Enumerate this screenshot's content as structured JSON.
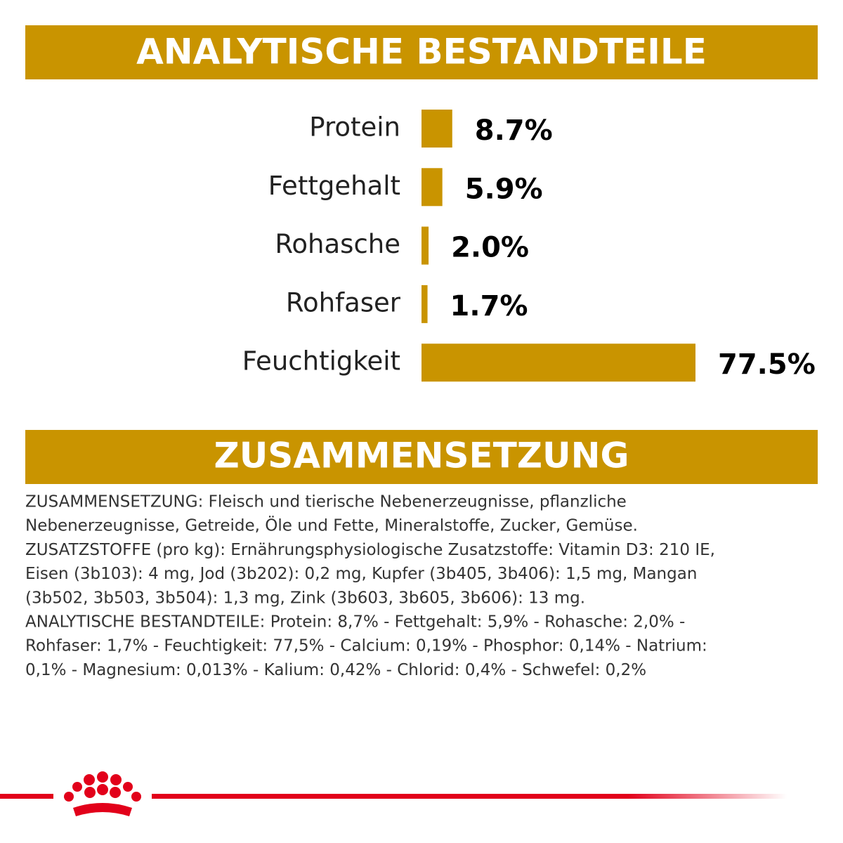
{
  "chart_data": {
    "type": "bar",
    "orientation": "horizontal",
    "title": "ANALYTISCHE BESTANDTEILE",
    "categories": [
      "Protein",
      "Fettgehalt",
      "Rohasche",
      "Rohfaser",
      "Feuchtigkeit"
    ],
    "values": [
      8.7,
      5.9,
      2.0,
      1.7,
      77.5
    ],
    "value_labels": [
      "8.7%",
      "5.9%",
      "2.0%",
      "1.7%",
      "77.5%"
    ],
    "color": "#c99400"
  },
  "composition": {
    "title": "ZUSAMMENSETZUNG",
    "lines": [
      "ZUSAMMENSETZUNG: Fleisch und tierische Nebenerzeugnisse, pflanzliche",
      "Nebenerzeugnisse, Getreide, Öle und Fette, Mineralstoffe, Zucker, Gemüse.",
      "ZUSATZSTOFFE (pro kg): Ernährungsphysiologische Zusatzstoffe: Vitamin D3: 210 IE,",
      "Eisen (3b103): 4 mg, Jod (3b202): 0,2 mg, Kupfer (3b405, 3b406): 1,5 mg, Mangan",
      "(3b502, 3b503, 3b504): 1,3 mg, Zink (3b603, 3b605, 3b606): 13 mg.",
      "ANALYTISCHE BESTANDTEILE: Protein: 8,7% - Fettgehalt: 5,9% - Rohasche: 2,0% -",
      "Rohfaser: 1,7% - Feuchtigkeit: 77,5% - Calcium: 0,19% - Phosphor: 0,14% - Natrium:",
      "0,1% - Magnesium: 0,013% - Kalium: 0,42% - Chlorid: 0,4% - Schwefel: 0,2%"
    ]
  }
}
